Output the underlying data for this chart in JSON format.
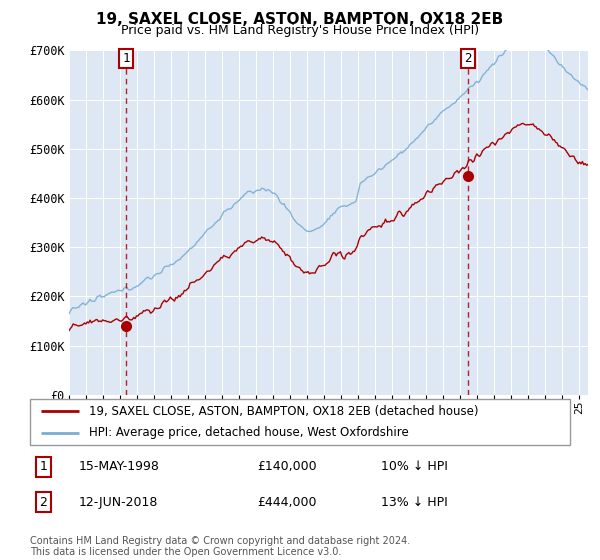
{
  "title": "19, SAXEL CLOSE, ASTON, BAMPTON, OX18 2EB",
  "subtitle": "Price paid vs. HM Land Registry's House Price Index (HPI)",
  "ylim": [
    0,
    700000
  ],
  "yticks": [
    0,
    100000,
    200000,
    300000,
    400000,
    500000,
    600000,
    700000
  ],
  "ytick_labels": [
    "£0",
    "£100K",
    "£200K",
    "£300K",
    "£400K",
    "£500K",
    "£600K",
    "£700K"
  ],
  "bg_color": "#dde8f4",
  "hpi_color": "#7aadd4",
  "price_color": "#aa0000",
  "sale1_date": 1998.37,
  "sale1_price": 140000,
  "sale2_date": 2018.44,
  "sale2_price": 444000,
  "legend_label_price": "19, SAXEL CLOSE, ASTON, BAMPTON, OX18 2EB (detached house)",
  "legend_label_hpi": "HPI: Average price, detached house, West Oxfordshire",
  "table_row1": [
    "1",
    "15-MAY-1998",
    "£140,000",
    "10% ↓ HPI"
  ],
  "table_row2": [
    "2",
    "12-JUN-2018",
    "£444,000",
    "13% ↓ HPI"
  ],
  "footer": "Contains HM Land Registry data © Crown copyright and database right 2024.\nThis data is licensed under the Open Government Licence v3.0.",
  "xmin": 1995,
  "xmax": 2025.5
}
